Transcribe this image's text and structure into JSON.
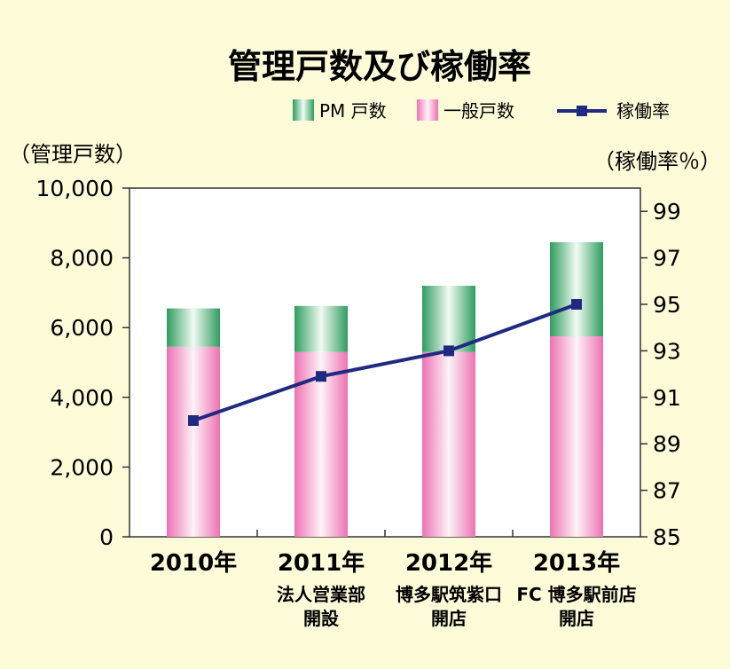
{
  "chart_data": {
    "type": "bar",
    "title": "管理戸数及び稼働率",
    "categories": [
      "2010年",
      "2011年",
      "2012年",
      "2013年"
    ],
    "category_notes": [
      [],
      [
        "法人営業部",
        "開設"
      ],
      [
        "博多駅筑紫口",
        "開店"
      ],
      [
        "FC 博多駅前店",
        "開店"
      ]
    ],
    "stacked": true,
    "series": [
      {
        "name": "一般戸数",
        "kind": "bar",
        "axis": "left",
        "values": [
          5450,
          5300,
          5300,
          5750
        ],
        "color": "#f07fb8"
      },
      {
        "name": "PM 戸数",
        "kind": "bar",
        "axis": "left",
        "values": [
          1100,
          1320,
          1900,
          2700
        ],
        "color": "#3aa46a"
      },
      {
        "name": "稼働率",
        "kind": "line",
        "axis": "right",
        "values": [
          90.0,
          91.9,
          93.0,
          95.0
        ],
        "color": "#1f2a80"
      }
    ],
    "ylabel_left": "（管理戸数）",
    "ylabel_right": "（稼働率％）",
    "ylim_left": [
      0,
      10000
    ],
    "ylim_right": [
      85,
      100
    ],
    "yticks_left": [
      0,
      2000,
      4000,
      6000,
      8000,
      10000
    ],
    "yticks_left_labels": [
      "0",
      "2,000",
      "4,000",
      "6,000",
      "8,000",
      "10,000"
    ],
    "yticks_right": [
      85,
      87,
      89,
      91,
      93,
      95,
      97,
      99
    ],
    "legend_position": "top-right",
    "grid": false
  }
}
